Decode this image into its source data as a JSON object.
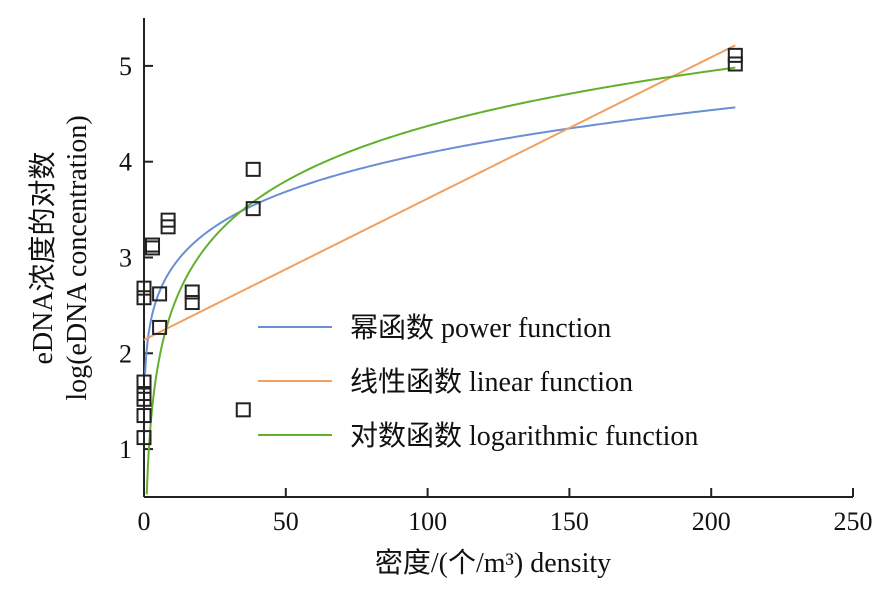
{
  "chart_data": {
    "type": "scatter",
    "xlabel": "密度/(个/m³) density",
    "ylabel_line1": "eDNA浓度的对数",
    "ylabel_line2": "log(eDNA concentration)",
    "xlim": [
      0,
      250
    ],
    "ylim": [
      0.5,
      5.5
    ],
    "xticks": [
      "0",
      "50",
      "100",
      "150",
      "200",
      "250"
    ],
    "yticks": [
      "1",
      "2",
      "3",
      "4",
      "5"
    ],
    "grid": false,
    "legend_position": "lower-center",
    "points": [
      {
        "x": 0,
        "y": 1.12
      },
      {
        "x": 0,
        "y": 1.35
      },
      {
        "x": 0,
        "y": 1.52
      },
      {
        "x": 0,
        "y": 1.58
      },
      {
        "x": 0,
        "y": 1.7
      },
      {
        "x": 0,
        "y": 2.58
      },
      {
        "x": 0,
        "y": 2.68
      },
      {
        "x": 3,
        "y": 3.1
      },
      {
        "x": 3,
        "y": 3.13
      },
      {
        "x": 5.5,
        "y": 2.27
      },
      {
        "x": 5.5,
        "y": 2.62
      },
      {
        "x": 8.5,
        "y": 3.32
      },
      {
        "x": 8.5,
        "y": 3.39
      },
      {
        "x": 17,
        "y": 2.53
      },
      {
        "x": 17,
        "y": 2.64
      },
      {
        "x": 35,
        "y": 1.41
      },
      {
        "x": 38.5,
        "y": 3.51
      },
      {
        "x": 38.5,
        "y": 3.92
      },
      {
        "x": 208.5,
        "y": 5.02
      },
      {
        "x": 208.5,
        "y": 5.11
      }
    ],
    "series": [
      {
        "name": "幂函数 power function",
        "color": "#6a8fd4",
        "model": "power",
        "a": 2.05,
        "b": 0.15
      },
      {
        "name": "线性函数 linear function",
        "color": "#f0a060",
        "model": "linear",
        "intercept": 2.14,
        "slope": 0.01475
      },
      {
        "name": "对数函数 logarithmic function",
        "color": "#62b02e",
        "model": "logarithmic",
        "a": 0.55,
        "b": 0.83
      }
    ]
  }
}
